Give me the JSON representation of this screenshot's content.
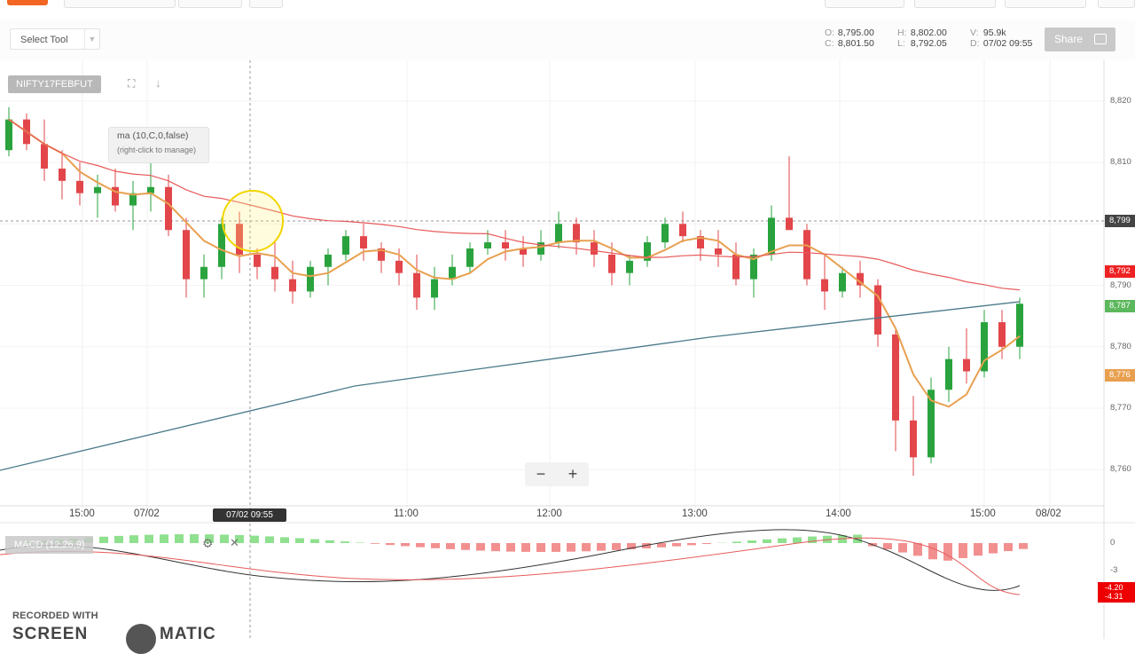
{
  "toolbar": {
    "select_tool_label": "Select Tool",
    "ohlc": {
      "o_label": "O:",
      "o_value": "8,795.00",
      "c_label": "C:",
      "c_value": "8,801.50",
      "h_label": "H:",
      "h_value": "8,802.00",
      "l_label": "L:",
      "l_value": "8,792.05",
      "v_label": "V:",
      "v_value": "95.9k",
      "d_label": "D:",
      "d_value": "07/02 09:55"
    },
    "share_label": "Share",
    "share_icon": "share-arrow-icon"
  },
  "chart": {
    "symbol": "NIFTY17FEBFUT",
    "fullscreen_icon": "expand-icon",
    "download_icon": "download-arrow-icon",
    "ma_tooltip": "ma (10,C,0,false)",
    "ma_tooltip_hint": "(right-click to manage)",
    "zoom_out": "−",
    "zoom_in": "+",
    "crosshair_time_badge": "07/02 09:55",
    "price_badges": [
      "8,799",
      "8,792",
      "8,787",
      "8,776"
    ],
    "colors": {
      "up": "#2aa33e",
      "down": "#e2464a",
      "ma_fast": "#e8a050",
      "ma_slow": "#e85a5a",
      "ma_long": "#4a7a8a"
    }
  },
  "chart_data": {
    "type": "candlestick",
    "y_ticks": [
      "8,820",
      "8,810",
      "8,800",
      "8,790",
      "8,780",
      "8,770",
      "8,760"
    ],
    "x_ticks": [
      "15:00",
      "07/02",
      "11:00",
      "12:00",
      "13:00",
      "14:00",
      "15:00",
      "08/02"
    ],
    "ylim": [
      8757,
      8822
    ],
    "candles": [
      [
        8812,
        8819,
        8811,
        8817
      ],
      [
        8817,
        8818,
        8812,
        8813
      ],
      [
        8813,
        8817,
        8807,
        8809
      ],
      [
        8809,
        8812,
        8804,
        8807
      ],
      [
        8807,
        8810,
        8803,
        8805
      ],
      [
        8805,
        8808,
        8801,
        8806
      ],
      [
        8806,
        8809,
        8802,
        8803
      ],
      [
        8803,
        8807,
        8799,
        8805
      ],
      [
        8805,
        8810,
        8802,
        8806
      ],
      [
        8806,
        8808,
        8798,
        8799
      ],
      [
        8799,
        8801,
        8788,
        8791
      ],
      [
        8791,
        8795,
        8788,
        8793
      ],
      [
        8793,
        8801,
        8791,
        8800
      ],
      [
        8800,
        8802,
        8792,
        8795
      ],
      [
        8795,
        8796,
        8791,
        8793
      ],
      [
        8793,
        8797,
        8789,
        8791
      ],
      [
        8791,
        8794,
        8787,
        8789
      ],
      [
        8789,
        8794,
        8788,
        8793
      ],
      [
        8793,
        8796,
        8790,
        8795
      ],
      [
        8795,
        8799,
        8794,
        8798
      ],
      [
        8798,
        8800,
        8794,
        8796
      ],
      [
        8796,
        8797,
        8792,
        8794
      ],
      [
        8794,
        8796,
        8790,
        8792
      ],
      [
        8792,
        8795,
        8786,
        8788
      ],
      [
        8788,
        8793,
        8786,
        8791
      ],
      [
        8791,
        8795,
        8790,
        8793
      ],
      [
        8793,
        8797,
        8792,
        8796
      ],
      [
        8796,
        8799,
        8795,
        8797
      ],
      [
        8797,
        8799,
        8794,
        8796
      ],
      [
        8796,
        8798,
        8793,
        8795
      ],
      [
        8795,
        8799,
        8794,
        8797
      ],
      [
        8797,
        8802,
        8796,
        8800
      ],
      [
        8800,
        8801,
        8795,
        8797
      ],
      [
        8797,
        8799,
        8793,
        8795
      ],
      [
        8795,
        8797,
        8790,
        8792
      ],
      [
        8792,
        8795,
        8790,
        8794
      ],
      [
        8794,
        8798,
        8793,
        8797
      ],
      [
        8797,
        8801,
        8796,
        8800
      ],
      [
        8800,
        8802,
        8797,
        8798
      ],
      [
        8798,
        8799,
        8794,
        8796
      ],
      [
        8796,
        8799,
        8793,
        8795
      ],
      [
        8795,
        8797,
        8790,
        8791
      ],
      [
        8791,
        8796,
        8788,
        8795
      ],
      [
        8795,
        8803,
        8794,
        8801
      ],
      [
        8801,
        8811,
        8799,
        8799
      ],
      [
        8799,
        8800,
        8790,
        8791
      ],
      [
        8791,
        8795,
        8786,
        8789
      ],
      [
        8789,
        8793,
        8788,
        8792
      ],
      [
        8792,
        8794,
        8788,
        8790
      ],
      [
        8790,
        8791,
        8780,
        8782
      ],
      [
        8782,
        8783,
        8763,
        8768
      ],
      [
        8768,
        8772,
        8759,
        8762
      ],
      [
        8762,
        8775,
        8761,
        8773
      ],
      [
        8773,
        8780,
        8771,
        8778
      ],
      [
        8778,
        8783,
        8774,
        8776
      ],
      [
        8776,
        8786,
        8775,
        8784
      ],
      [
        8784,
        8786,
        8778,
        8780
      ],
      [
        8780,
        8788,
        8778,
        8787
      ]
    ],
    "ma_series": [
      "ma (10,C,0,false)"
    ],
    "macd": {
      "label": "MACD (12,26,9)",
      "y_ticks": [
        "0",
        "-3"
      ],
      "badges": [
        "-4.20",
        "-4.31"
      ]
    }
  },
  "watermark": {
    "recorded_with": "RECORDED WITH",
    "brand_left": "SCREEN",
    "brand_right": "MATIC"
  }
}
